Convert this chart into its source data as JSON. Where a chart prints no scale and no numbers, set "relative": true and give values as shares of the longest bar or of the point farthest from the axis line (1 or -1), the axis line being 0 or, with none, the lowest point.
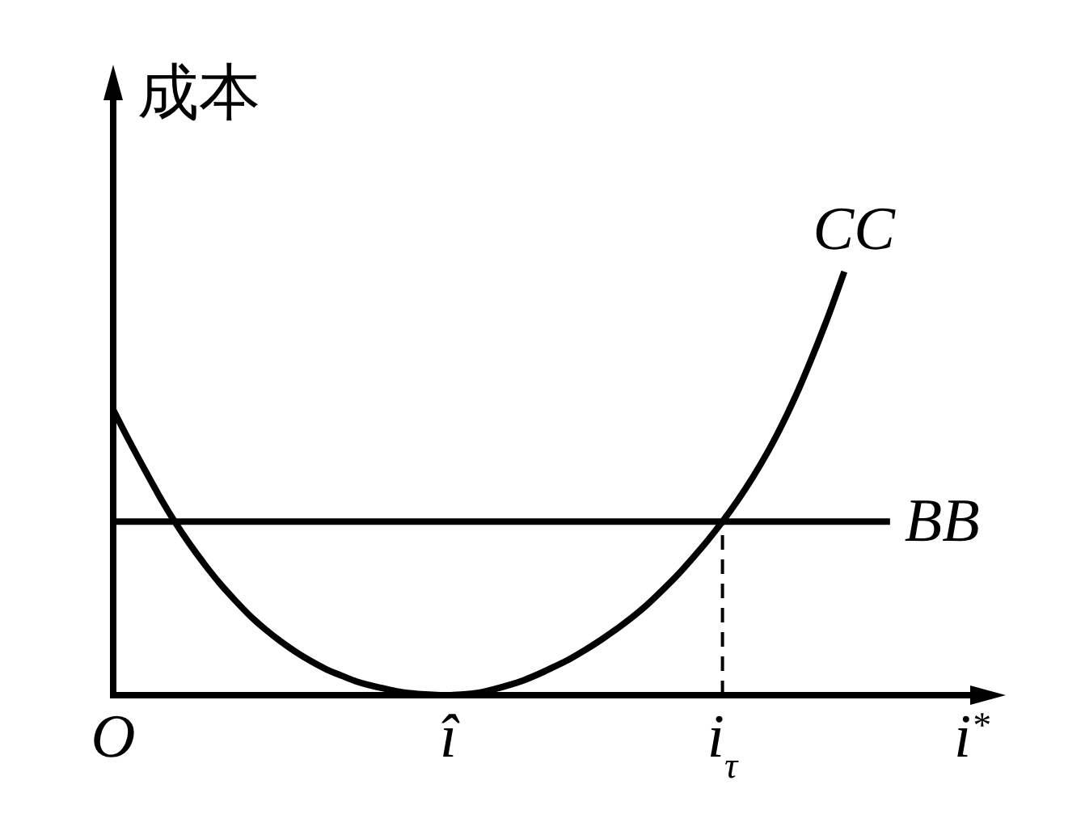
{
  "chart_data": {
    "type": "line",
    "relative": true,
    "ylabel": "成本",
    "xlabel": "i$^{*}$",
    "categories": [
      "O",
      null,
      null,
      null,
      null,
      null,
      null,
      null,
      null,
      null,
      null,
      null,
      null,
      null,
      null,
      null,
      null,
      null,
      null,
      null,
      null,
      null,
      "î",
      null,
      null,
      null,
      null,
      null,
      null,
      null,
      null,
      null,
      null,
      null,
      null,
      null,
      null,
      null,
      null,
      null,
      "i$_{τ}$",
      null,
      null,
      null,
      null,
      null,
      null,
      null,
      null,
      null,
      null,
      null
    ],
    "series": [
      {
        "name": "CC",
        "color": "#000000",
        "values": [
          0.674,
          0.604,
          0.537,
          0.472,
          0.412,
          0.358,
          0.309,
          0.264,
          0.224,
          0.187,
          0.155,
          0.127,
          0.102,
          0.08,
          0.061,
          0.046,
          0.032,
          0.022,
          0.014,
          0.007,
          0.003,
          0.001,
          0,
          0.002,
          0.006,
          0.014,
          0.024,
          0.036,
          0.051,
          0.068,
          0.086,
          0.107,
          0.13,
          0.155,
          0.182,
          0.212,
          0.246,
          0.282,
          0.322,
          0.364,
          0.41,
          0.46,
          0.515,
          0.576,
          0.645,
          0.722,
          0.808,
          0.9,
          1,
          null,
          null,
          null
        ]
      },
      {
        "name": "BB",
        "color": "#000000",
        "values": [
          0.41,
          0.41,
          0.41,
          0.41,
          0.41,
          0.41,
          0.41,
          0.41,
          0.41,
          0.41,
          0.41,
          0.41,
          0.41,
          0.41,
          0.41,
          0.41,
          0.41,
          0.41,
          0.41,
          0.41,
          0.41,
          0.41,
          0.41,
          0.41,
          0.41,
          0.41,
          0.41,
          0.41,
          0.41,
          0.41,
          0.41,
          0.41,
          0.41,
          0.41,
          0.41,
          0.41,
          0.41,
          0.41,
          0.41,
          0.41,
          0.41,
          0.41,
          0.41,
          0.41,
          0.41,
          0.41,
          0.41,
          0.41,
          0.41,
          0.41,
          0.41,
          0.41
        ]
      }
    ],
    "ref_lines": [
      {
        "axis": "x",
        "value": "i$_{τ}$",
        "line_style": "dashed",
        "color": "#000000"
      }
    ]
  }
}
